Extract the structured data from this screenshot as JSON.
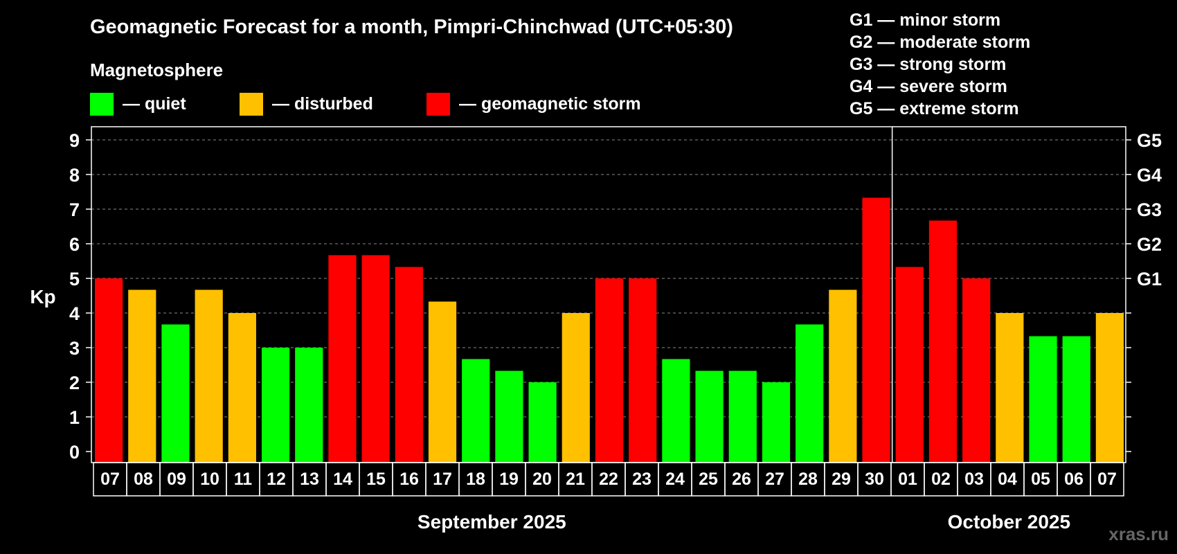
{
  "chart_data": {
    "type": "bar",
    "title": "Geomagnetic Forecast for a month, Pimpri-Chinchwad (UTC+05:30)",
    "legend_title": "Magnetosphere",
    "legend": [
      {
        "label": "— quiet",
        "color": "#00ff00",
        "key": "quiet"
      },
      {
        "label": "— disturbed",
        "color": "#ffc000",
        "key": "disturbed"
      },
      {
        "label": "— geomagnetic storm",
        "color": "#ff0000",
        "key": "storm"
      }
    ],
    "g_scale": [
      "G1 — minor storm",
      "G2 — moderate storm",
      "G3 — strong storm",
      "G4 — severe storm",
      "G5 — extreme storm"
    ],
    "ylabel": "Kp",
    "ylim": [
      0,
      9
    ],
    "yticks": [
      0,
      1,
      2,
      3,
      4,
      5,
      6,
      7,
      8,
      9
    ],
    "right_ticks": [
      {
        "value": 5,
        "label": "G1"
      },
      {
        "value": 6,
        "label": "G2"
      },
      {
        "value": 7,
        "label": "G3"
      },
      {
        "value": 8,
        "label": "G4"
      },
      {
        "value": 9,
        "label": "G5"
      }
    ],
    "grid": true,
    "categories": [
      "07",
      "08",
      "09",
      "10",
      "11",
      "12",
      "13",
      "14",
      "15",
      "16",
      "17",
      "18",
      "19",
      "20",
      "21",
      "22",
      "23",
      "24",
      "25",
      "26",
      "27",
      "28",
      "29",
      "30",
      "01",
      "02",
      "03",
      "04",
      "05",
      "06",
      "07"
    ],
    "values": [
      5.0,
      4.67,
      3.67,
      4.67,
      4.0,
      3.0,
      3.0,
      5.67,
      5.67,
      5.33,
      4.33,
      2.67,
      2.33,
      2.0,
      4.0,
      5.0,
      5.0,
      2.67,
      2.33,
      2.33,
      2.0,
      3.67,
      4.67,
      7.33,
      5.33,
      6.67,
      5.0,
      4.0,
      3.33,
      3.33,
      4.0
    ],
    "status": [
      "storm",
      "disturbed",
      "quiet",
      "disturbed",
      "disturbed",
      "quiet",
      "quiet",
      "storm",
      "storm",
      "storm",
      "disturbed",
      "quiet",
      "quiet",
      "quiet",
      "disturbed",
      "storm",
      "storm",
      "quiet",
      "quiet",
      "quiet",
      "quiet",
      "quiet",
      "disturbed",
      "storm",
      "storm",
      "storm",
      "storm",
      "disturbed",
      "quiet",
      "quiet",
      "disturbed"
    ],
    "months": [
      {
        "label": "September 2025",
        "count": 24
      },
      {
        "label": "October 2025",
        "count": 7
      }
    ]
  },
  "watermark": "xras.ru"
}
